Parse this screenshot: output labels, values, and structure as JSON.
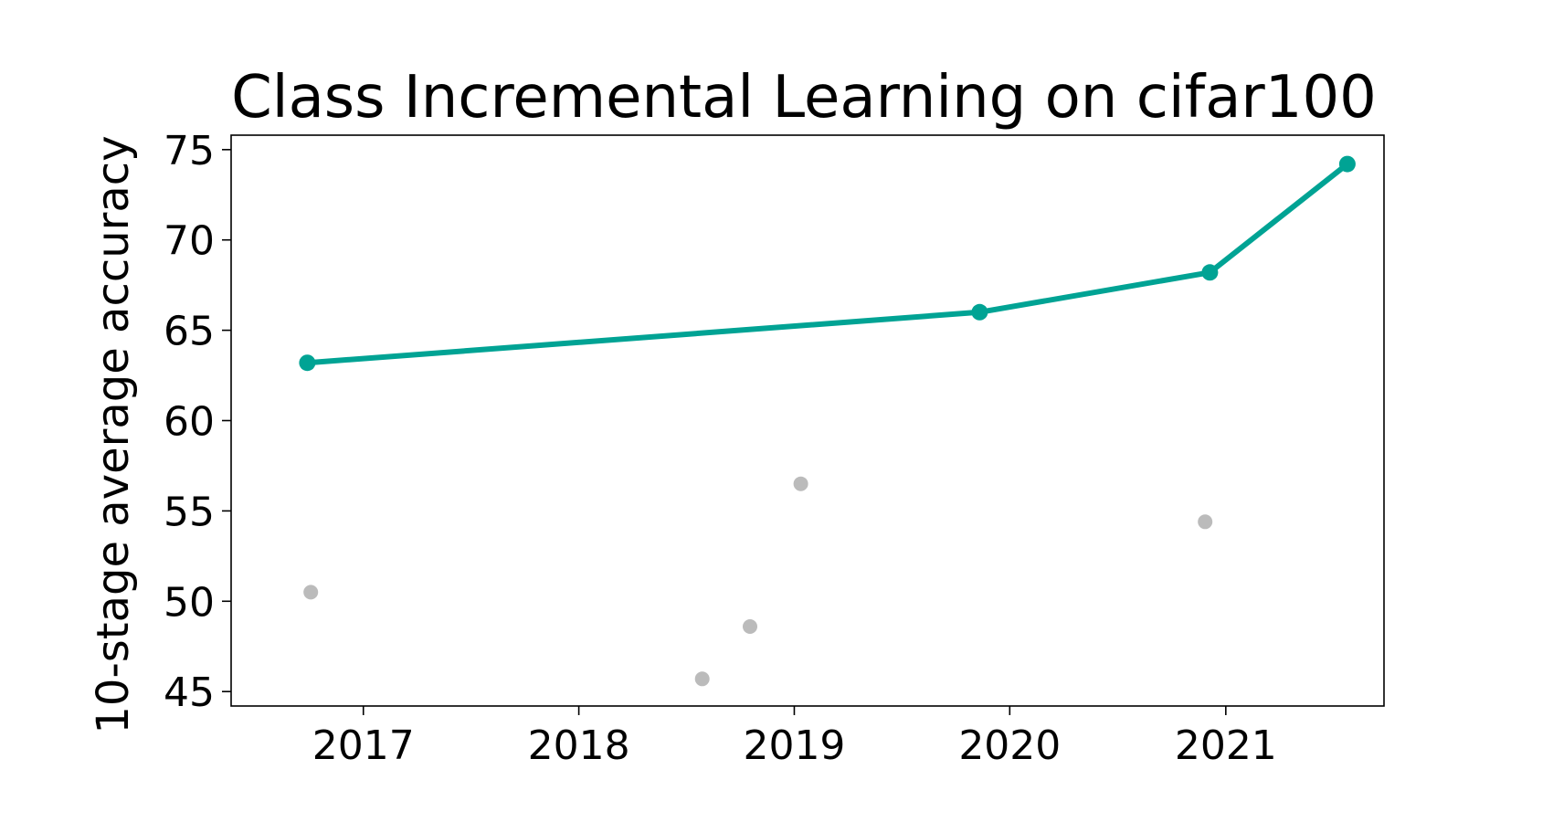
{
  "chart_data": {
    "type": "scatter",
    "title": "Class Incremental Learning on cifar100",
    "xlabel": "",
    "ylabel": "10-stage average accuracy",
    "xlim": [
      "2016-05-22",
      "2021-09-26"
    ],
    "ylim": [
      44.2,
      75.8
    ],
    "x_ticks": [
      "2017",
      "2018",
      "2019",
      "2020",
      "2021"
    ],
    "y_ticks": [
      45,
      50,
      55,
      60,
      65,
      70,
      75
    ],
    "grid": false,
    "legend": "none",
    "series": [
      {
        "style": "line-marker",
        "color": "#00a394",
        "points": [
          {
            "x": "2016-09-28",
            "y": 63.2
          },
          {
            "x": "2019-11-11",
            "y": 66.0
          },
          {
            "x": "2020-12-05",
            "y": 68.2
          },
          {
            "x": "2021-07-26",
            "y": 74.2
          }
        ]
      },
      {
        "style": "scatter",
        "color": "#bbbbbb",
        "points": [
          {
            "x": "2016-10-04",
            "y": 50.5
          },
          {
            "x": "2018-07-29",
            "y": 45.7
          },
          {
            "x": "2018-10-18",
            "y": 48.6
          },
          {
            "x": "2019-01-12",
            "y": 56.5
          },
          {
            "x": "2020-11-27",
            "y": 54.4
          }
        ]
      }
    ]
  }
}
